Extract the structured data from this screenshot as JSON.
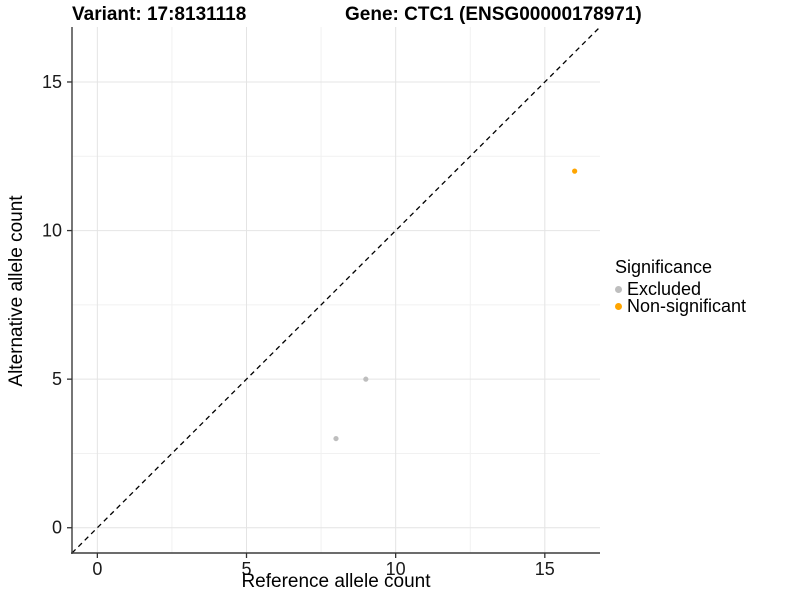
{
  "header": {
    "variant_title": "Variant: 17:8131118",
    "gene_title": "Gene: CTC1 (ENSG00000178971)"
  },
  "legend": {
    "title": "Significance",
    "items": [
      {
        "label": "Excluded",
        "color": "#BEBEBE"
      },
      {
        "label": "Non-significant",
        "color": "#FFA500"
      }
    ]
  },
  "chart_data": {
    "type": "scatter",
    "title": "Variant: 17:8131118   Gene: CTC1 (ENSG00000178971)",
    "xlabel": "Reference allele count",
    "ylabel": "Alternative allele count",
    "xlim": [
      -0.85,
      16.85
    ],
    "ylim": [
      -0.85,
      16.85
    ],
    "x_ticks": [
      0,
      5,
      10,
      15
    ],
    "y_ticks": [
      0,
      5,
      10,
      15
    ],
    "x_minor_ticks": [
      2.5,
      7.5,
      12.5
    ],
    "y_minor_ticks": [
      2.5,
      7.5,
      12.5
    ],
    "grid": true,
    "legend_position": "right",
    "identity_line": {
      "type": "dashed",
      "slope": 1,
      "intercept": 0,
      "color": "#000000"
    },
    "series": [
      {
        "name": "Excluded",
        "color": "#BEBEBE",
        "points": [
          [
            8,
            3
          ],
          [
            9,
            5
          ]
        ]
      },
      {
        "name": "Non-significant",
        "color": "#FFA500",
        "points": [
          [
            16,
            12
          ]
        ]
      }
    ]
  },
  "style": {
    "grid_major_color": "#E4E4E4",
    "grid_minor_color": "#F1F1F1",
    "axis_line_color": "#3c3c3c",
    "tick_color": "#333333",
    "tick_label_color": "#1a1a1a",
    "point_radius": 2.6
  }
}
